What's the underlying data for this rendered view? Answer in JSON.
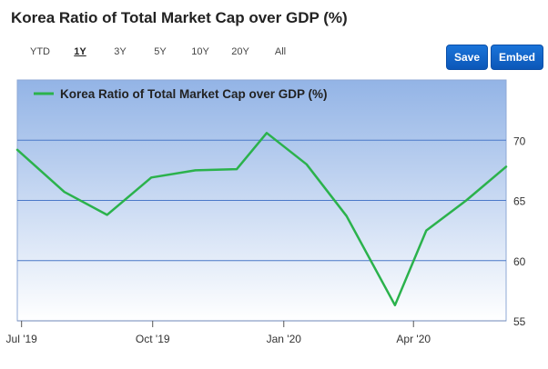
{
  "page": {
    "title": "Korea Ratio of Total Market Cap over GDP (%)"
  },
  "toolbar": {
    "ranges": [
      "YTD",
      "1Y",
      "3Y",
      "5Y",
      "10Y",
      "20Y",
      "All"
    ],
    "active_range": "1Y",
    "save_label": "Save",
    "embed_label": "Embed"
  },
  "colors": {
    "line": "#2bb24c",
    "grid": "#4a78c8",
    "button": "#1565c9"
  },
  "chart_data": {
    "type": "line",
    "legend": "top-left",
    "series": [
      {
        "name": "Korea Ratio of Total Market Cap over GDP (%)",
        "x": [
          "2019-06-28",
          "2019-07-31",
          "2019-08-30",
          "2019-09-30",
          "2019-10-31",
          "2019-11-29",
          "2019-12-20",
          "2020-01-17",
          "2020-02-14",
          "2020-03-19",
          "2020-04-10",
          "2020-05-08",
          "2020-06-05"
        ],
        "y": [
          69.2,
          65.7,
          63.8,
          66.9,
          67.5,
          67.6,
          70.6,
          68.0,
          63.7,
          56.3,
          62.5,
          65.0,
          67.8
        ]
      }
    ],
    "xticks": [
      {
        "date": "2019-07-01",
        "label": "Jul '19"
      },
      {
        "date": "2019-10-01",
        "label": "Oct '19"
      },
      {
        "date": "2020-01-01",
        "label": "Jan '20"
      },
      {
        "date": "2020-04-01",
        "label": "Apr '20"
      }
    ],
    "yticks": [
      55,
      60,
      65,
      70
    ],
    "ylim": [
      55,
      75
    ],
    "xlim": [
      "2019-06-28",
      "2020-06-05"
    ],
    "grid": true
  }
}
